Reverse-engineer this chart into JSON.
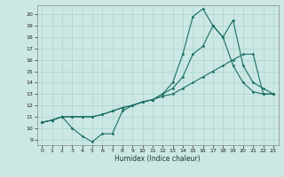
{
  "xlabel": "Humidex (Indice chaleur)",
  "xlim": [
    -0.5,
    23.5
  ],
  "ylim": [
    8.5,
    20.8
  ],
  "xticks": [
    0,
    1,
    2,
    3,
    4,
    5,
    6,
    7,
    8,
    9,
    10,
    11,
    12,
    13,
    14,
    15,
    16,
    17,
    18,
    19,
    20,
    21,
    22,
    23
  ],
  "yticks": [
    9,
    10,
    11,
    12,
    13,
    14,
    15,
    16,
    17,
    18,
    19,
    20
  ],
  "bg_color": "#cce8e4",
  "grid_color": "#aad4ce",
  "line_color": "#1a6e64",
  "series": [
    {
      "x": [
        0,
        1,
        2,
        3,
        4,
        5,
        6,
        7,
        8,
        9,
        10,
        11,
        12,
        13,
        14,
        15,
        16,
        17,
        18,
        19,
        20,
        21,
        22,
        23
      ],
      "y": [
        10.5,
        10.7,
        11.0,
        10.0,
        9.3,
        8.8,
        9.5,
        9.5,
        11.5,
        12.0,
        12.3,
        12.5,
        13.0,
        14.0,
        16.5,
        19.8,
        20.5,
        19.0,
        18.0,
        15.5,
        14.0,
        13.2,
        13.0,
        13.0
      ]
    },
    {
      "x": [
        0,
        1,
        2,
        3,
        4,
        5,
        6,
        7,
        8,
        9,
        10,
        11,
        12,
        13,
        14,
        15,
        16,
        17,
        18,
        19,
        20,
        21,
        22,
        23
      ],
      "y": [
        10.5,
        10.7,
        11.0,
        11.0,
        11.0,
        11.0,
        11.2,
        11.5,
        11.8,
        12.0,
        12.3,
        12.5,
        13.0,
        13.5,
        14.5,
        16.5,
        17.2,
        19.0,
        18.0,
        19.5,
        15.5,
        14.0,
        13.5,
        13.0
      ]
    },
    {
      "x": [
        0,
        1,
        2,
        3,
        4,
        5,
        6,
        7,
        8,
        9,
        10,
        11,
        12,
        13,
        14,
        15,
        16,
        17,
        18,
        19,
        20,
        21,
        22,
        23
      ],
      "y": [
        10.5,
        10.7,
        11.0,
        11.0,
        11.0,
        11.0,
        11.2,
        11.5,
        11.8,
        12.0,
        12.3,
        12.5,
        12.8,
        13.0,
        13.5,
        14.0,
        14.5,
        15.0,
        15.5,
        16.0,
        16.5,
        16.5,
        13.0,
        13.0
      ]
    }
  ]
}
